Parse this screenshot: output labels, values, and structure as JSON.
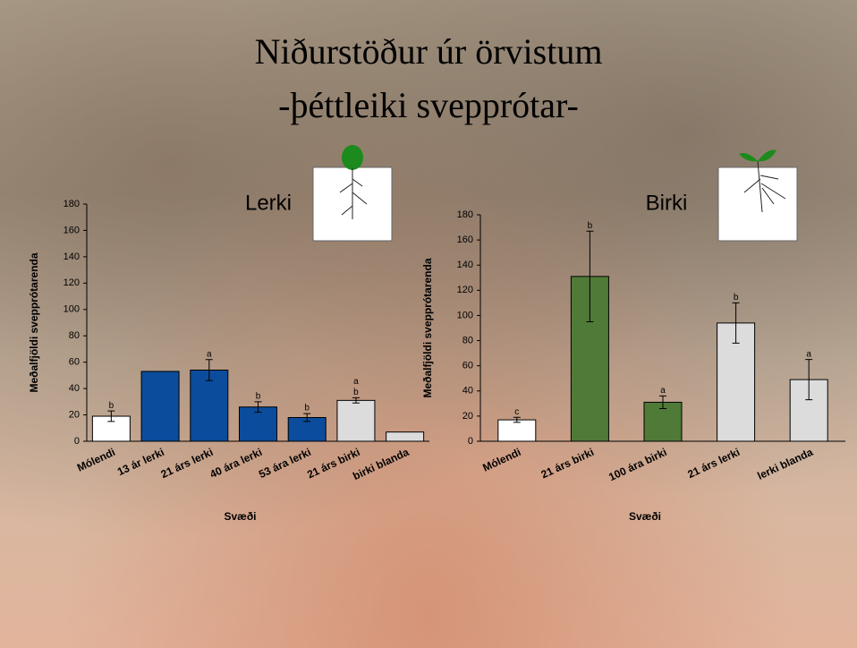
{
  "title": [
    "Niðurstöður úr örvistum",
    "-þéttleiki svepprótar-"
  ],
  "chart_data": [
    {
      "type": "bar",
      "title": "Lerki",
      "y_label": "Meðalfjöldi svepprótarenda",
      "x_label": "Svæði",
      "categories": [
        "Mólendi",
        "13 ár lerki",
        "21 árs lerki",
        "40 ára lerki",
        "53 ára lerki",
        "21 árs birki",
        "birki blanda"
      ],
      "values": [
        19,
        53,
        54,
        26,
        18,
        31,
        7
      ],
      "errors": [
        4,
        null,
        8,
        4,
        3,
        2,
        null
      ],
      "letters": [
        "b",
        null,
        "a",
        "b",
        "b",
        [
          "a",
          "b"
        ],
        null
      ],
      "colors": [
        "#ffffff",
        "#0b4c9c",
        "#0b4c9c",
        "#0b4c9c",
        "#0b4c9c",
        "#dcdcdc",
        "#dcdcdc"
      ],
      "ylim": [
        0,
        180
      ],
      "yticks": [
        0,
        20,
        40,
        60,
        80,
        100,
        120,
        140,
        160,
        180
      ]
    },
    {
      "type": "bar",
      "title": "Birki",
      "y_label": "Meðalfjöldi svepprótarenda",
      "x_label": "Svæði",
      "categories": [
        "Mólendi",
        "21 árs birki",
        "100 ára birki",
        "21 árs lerki",
        "lerki blanda"
      ],
      "values": [
        17,
        131,
        31,
        94,
        49
      ],
      "errors": [
        2,
        36,
        5,
        16,
        16
      ],
      "letters": [
        "c",
        "b",
        "a",
        "b",
        "a"
      ],
      "colors": [
        "#ffffff",
        "#4f7a38",
        "#4f7a38",
        "#dcdcdc",
        "#dcdcdc"
      ],
      "ylim": [
        0,
        180
      ],
      "yticks": [
        0,
        20,
        40,
        60,
        80,
        100,
        120,
        140,
        160,
        180
      ]
    }
  ]
}
